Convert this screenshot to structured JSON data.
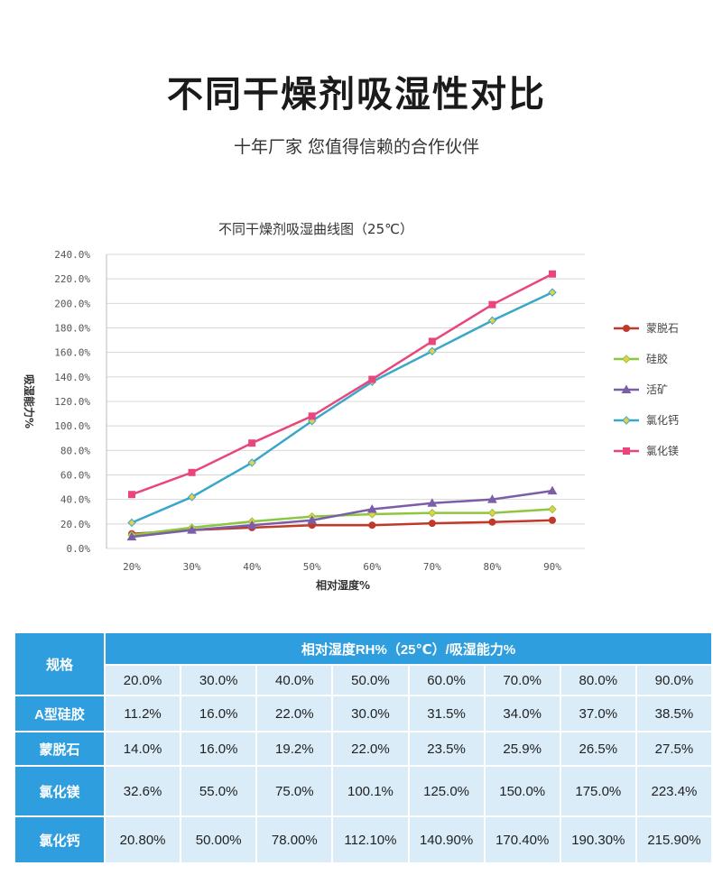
{
  "header": {
    "title": "不同干燥剂吸湿性对比",
    "subtitle": "十年厂家 您值得信赖的合作伙伴"
  },
  "chart_data": {
    "type": "line",
    "title": "不同干燥剂吸湿曲线图（25℃）",
    "xlabel": "相对湿度%",
    "ylabel": "吸湿能力%",
    "categories": [
      "20%",
      "30%",
      "40%",
      "50%",
      "60%",
      "70%",
      "80%",
      "90%"
    ],
    "yticks": [
      "0.0%",
      "20.0%",
      "40.0%",
      "60.0%",
      "80.0%",
      "100.0%",
      "120.0%",
      "140.0%",
      "160.0%",
      "180.0%",
      "200.0%",
      "220.0%",
      "240.0%"
    ],
    "ylim": [
      0,
      240
    ],
    "grid": true,
    "legend_position": "right",
    "series": [
      {
        "name": "蒙脱石",
        "color": "#c0392b",
        "marker": "circle",
        "values": [
          12,
          15,
          17,
          19,
          19,
          20.5,
          21.5,
          23
        ]
      },
      {
        "name": "硅胶",
        "color": "#8dc63f",
        "marker": "diamond",
        "values": [
          11,
          17,
          22,
          26,
          28,
          29,
          29,
          32
        ]
      },
      {
        "name": "活矿",
        "color": "#7b5ea7",
        "marker": "triangle",
        "values": [
          9.5,
          15,
          19,
          23,
          32,
          37,
          40,
          47
        ]
      },
      {
        "name": "氯化钙",
        "color": "#3aa7c9",
        "marker": "diamond",
        "values": [
          21,
          42,
          70,
          104,
          136,
          161,
          186,
          209
        ]
      },
      {
        "name": "氯化镁",
        "color": "#e8467c",
        "marker": "square",
        "values": [
          44,
          62,
          86,
          108,
          138,
          169,
          199,
          224
        ]
      }
    ]
  },
  "table": {
    "spec_label": "规格",
    "header_label": "相对湿度RH%（25℃）/吸湿能力%",
    "humidity": [
      "20.0%",
      "30.0%",
      "40.0%",
      "50.0%",
      "60.0%",
      "70.0%",
      "80.0%",
      "90.0%"
    ],
    "rows": [
      {
        "label": "A型硅胶",
        "values": [
          "11.2%",
          "16.0%",
          "22.0%",
          "30.0%",
          "31.5%",
          "34.0%",
          "37.0%",
          "38.5%"
        ]
      },
      {
        "label": "蒙脱石",
        "values": [
          "14.0%",
          "16.0%",
          "19.2%",
          "22.0%",
          "23.5%",
          "25.9%",
          "26.5%",
          "27.5%"
        ]
      },
      {
        "label": "氯化镁",
        "values": [
          "32.6%",
          "55.0%",
          "75.0%",
          "100.1%",
          "125.0%",
          "150.0%",
          "175.0%",
          "223.4%"
        ]
      },
      {
        "label": "氯化钙",
        "values": [
          "20.80%",
          "50.00%",
          "78.00%",
          "112.10%",
          "140.90%",
          "170.40%",
          "190.30%",
          "215.90%"
        ]
      }
    ]
  }
}
